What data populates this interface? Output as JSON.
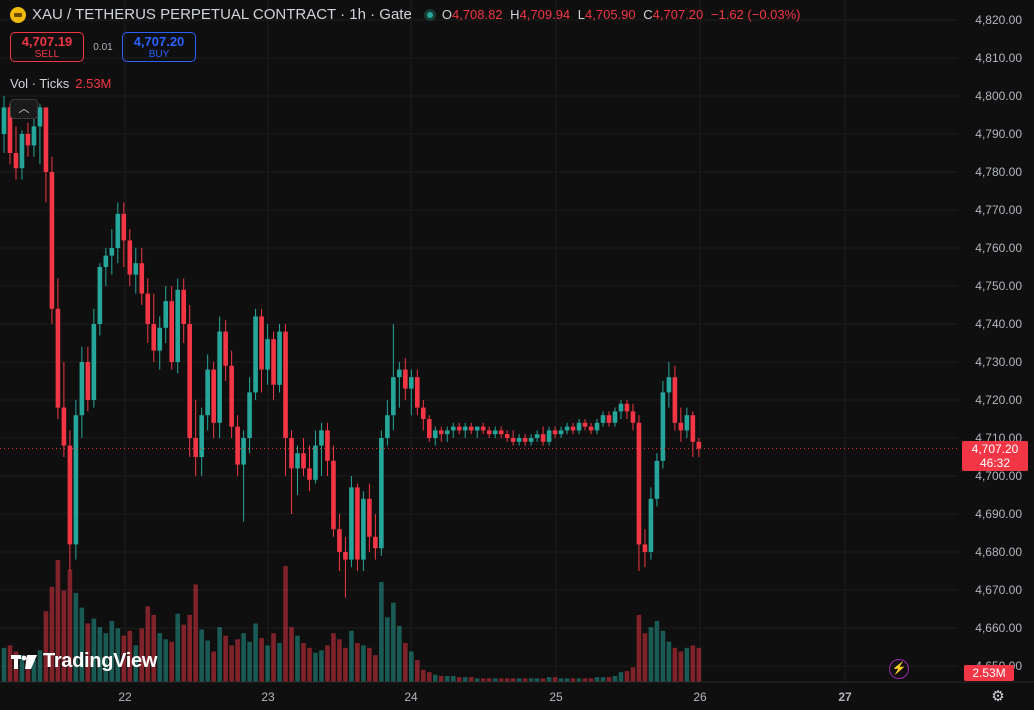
{
  "header": {
    "title": "XAU / TETHERUS PERPETUAL CONTRACT · 1h · Gate",
    "o_label": "O",
    "o": "4,708.82",
    "h_label": "H",
    "h": "4,709.94",
    "l_label": "L",
    "l": "4,705.90",
    "c_label": "C",
    "c": "4,707.20",
    "change": "−1.62 (−0.03%)"
  },
  "trade": {
    "sell_price": "4,707.19",
    "sell_label": "SELL",
    "spread": "0.01",
    "buy_price": "4,707.20",
    "buy_label": "BUY"
  },
  "volume_legend": {
    "label": "Vol · Ticks",
    "value": "2.53M"
  },
  "brand": "TradingView",
  "last_price": {
    "price": "4,707.20",
    "countdown": "46:32"
  },
  "volume_last": "2.53M",
  "colors": {
    "up": "#26a69a",
    "down": "#f23645",
    "background": "#0f0f0f",
    "buy": "#2962ff"
  },
  "icons": [
    "collapse-chevron-icon",
    "lightning-icon",
    "settings-icon",
    "tradingview-logo-icon"
  ],
  "chart_data": {
    "type": "candlestick",
    "y_ticks": [
      "4,820.00",
      "4,810.00",
      "4,800.00",
      "4,790.00",
      "4,780.00",
      "4,770.00",
      "4,760.00",
      "4,750.00",
      "4,740.00",
      "4,730.00",
      "4,720.00",
      "4,710.00",
      "4,700.00",
      "4,690.00",
      "4,680.00",
      "4,670.00",
      "4,660.00",
      "4,650.00"
    ],
    "x_ticks": [
      "22",
      "23",
      "24",
      "25",
      "26",
      "27"
    ],
    "ylim": [
      4648,
      4822
    ],
    "last_price": 4707.2,
    "volume_unit": "ticks",
    "candles": [
      {
        "o": 4790,
        "h": 4800,
        "l": 4785,
        "c": 4797,
        "v": 0.28
      },
      {
        "o": 4797,
        "h": 4798,
        "l": 4782,
        "c": 4785,
        "v": 0.3
      },
      {
        "o": 4785,
        "h": 4792,
        "l": 4778,
        "c": 4781,
        "v": 0.25
      },
      {
        "o": 4781,
        "h": 4791,
        "l": 4778,
        "c": 4790,
        "v": 0.22
      },
      {
        "o": 4790,
        "h": 4793,
        "l": 4784,
        "c": 4787,
        "v": 0.2
      },
      {
        "o": 4787,
        "h": 4795,
        "l": 4784,
        "c": 4792,
        "v": 0.18
      },
      {
        "o": 4792,
        "h": 4798,
        "l": 4782,
        "c": 4797,
        "v": 0.26
      },
      {
        "o": 4797,
        "h": 4797,
        "l": 4772,
        "c": 4780,
        "v": 0.58
      },
      {
        "o": 4780,
        "h": 4784,
        "l": 4740,
        "c": 4744,
        "v": 0.78
      },
      {
        "o": 4744,
        "h": 4752,
        "l": 4715,
        "c": 4718,
        "v": 1.0
      },
      {
        "o": 4718,
        "h": 4730,
        "l": 4705,
        "c": 4708,
        "v": 0.75
      },
      {
        "o": 4708,
        "h": 4712,
        "l": 4675,
        "c": 4682,
        "v": 0.92
      },
      {
        "o": 4682,
        "h": 4720,
        "l": 4678,
        "c": 4716,
        "v": 0.73
      },
      {
        "o": 4716,
        "h": 4734,
        "l": 4710,
        "c": 4730,
        "v": 0.61
      },
      {
        "o": 4730,
        "h": 4734,
        "l": 4717,
        "c": 4720,
        "v": 0.48
      },
      {
        "o": 4720,
        "h": 4744,
        "l": 4718,
        "c": 4740,
        "v": 0.52
      },
      {
        "o": 4740,
        "h": 4756,
        "l": 4737,
        "c": 4755,
        "v": 0.45
      },
      {
        "o": 4755,
        "h": 4760,
        "l": 4750,
        "c": 4758,
        "v": 0.4
      },
      {
        "o": 4758,
        "h": 4765,
        "l": 4753,
        "c": 4760,
        "v": 0.5
      },
      {
        "o": 4760,
        "h": 4772,
        "l": 4756,
        "c": 4769,
        "v": 0.44
      },
      {
        "o": 4769,
        "h": 4772,
        "l": 4755,
        "c": 4762,
        "v": 0.38
      },
      {
        "o": 4762,
        "h": 4765,
        "l": 4750,
        "c": 4753,
        "v": 0.42
      },
      {
        "o": 4753,
        "h": 4760,
        "l": 4748,
        "c": 4756,
        "v": 0.3
      },
      {
        "o": 4756,
        "h": 4760,
        "l": 4745,
        "c": 4748,
        "v": 0.44
      },
      {
        "o": 4748,
        "h": 4752,
        "l": 4735,
        "c": 4740,
        "v": 0.62
      },
      {
        "o": 4740,
        "h": 4748,
        "l": 4730,
        "c": 4733,
        "v": 0.55
      },
      {
        "o": 4733,
        "h": 4742,
        "l": 4728,
        "c": 4739,
        "v": 0.4
      },
      {
        "o": 4739,
        "h": 4750,
        "l": 4735,
        "c": 4746,
        "v": 0.35
      },
      {
        "o": 4746,
        "h": 4750,
        "l": 4728,
        "c": 4730,
        "v": 0.33
      },
      {
        "o": 4730,
        "h": 4752,
        "l": 4727,
        "c": 4749,
        "v": 0.56
      },
      {
        "o": 4749,
        "h": 4752,
        "l": 4735,
        "c": 4740,
        "v": 0.47
      },
      {
        "o": 4740,
        "h": 4745,
        "l": 4705,
        "c": 4710,
        "v": 0.55
      },
      {
        "o": 4710,
        "h": 4720,
        "l": 4700,
        "c": 4705,
        "v": 0.8
      },
      {
        "o": 4705,
        "h": 4718,
        "l": 4700,
        "c": 4716,
        "v": 0.43
      },
      {
        "o": 4716,
        "h": 4732,
        "l": 4712,
        "c": 4728,
        "v": 0.34
      },
      {
        "o": 4728,
        "h": 4730,
        "l": 4710,
        "c": 4714,
        "v": 0.25
      },
      {
        "o": 4714,
        "h": 4742,
        "l": 4710,
        "c": 4738,
        "v": 0.45
      },
      {
        "o": 4738,
        "h": 4741,
        "l": 4725,
        "c": 4729,
        "v": 0.38
      },
      {
        "o": 4729,
        "h": 4733,
        "l": 4710,
        "c": 4713,
        "v": 0.3
      },
      {
        "o": 4713,
        "h": 4716,
        "l": 4700,
        "c": 4703,
        "v": 0.35
      },
      {
        "o": 4703,
        "h": 4712,
        "l": 4688,
        "c": 4710,
        "v": 0.4
      },
      {
        "o": 4710,
        "h": 4726,
        "l": 4706,
        "c": 4722,
        "v": 0.33
      },
      {
        "o": 4722,
        "h": 4744,
        "l": 4720,
        "c": 4742,
        "v": 0.48
      },
      {
        "o": 4742,
        "h": 4744,
        "l": 4722,
        "c": 4728,
        "v": 0.36
      },
      {
        "o": 4728,
        "h": 4740,
        "l": 4724,
        "c": 4736,
        "v": 0.3
      },
      {
        "o": 4736,
        "h": 4738,
        "l": 4720,
        "c": 4724,
        "v": 0.4
      },
      {
        "o": 4724,
        "h": 4740,
        "l": 4722,
        "c": 4738,
        "v": 0.32
      },
      {
        "o": 4738,
        "h": 4740,
        "l": 4700,
        "c": 4710,
        "v": 0.95
      },
      {
        "o": 4710,
        "h": 4712,
        "l": 4690,
        "c": 4702,
        "v": 0.45
      },
      {
        "o": 4702,
        "h": 4708,
        "l": 4695,
        "c": 4706,
        "v": 0.38
      },
      {
        "o": 4706,
        "h": 4710,
        "l": 4700,
        "c": 4702,
        "v": 0.32
      },
      {
        "o": 4702,
        "h": 4708,
        "l": 4696,
        "c": 4699,
        "v": 0.28
      },
      {
        "o": 4699,
        "h": 4712,
        "l": 4698,
        "c": 4708,
        "v": 0.24
      },
      {
        "o": 4708,
        "h": 4714,
        "l": 4700,
        "c": 4712,
        "v": 0.26
      },
      {
        "o": 4712,
        "h": 4714,
        "l": 4700,
        "c": 4704,
        "v": 0.3
      },
      {
        "o": 4704,
        "h": 4708,
        "l": 4684,
        "c": 4686,
        "v": 0.4
      },
      {
        "o": 4686,
        "h": 4690,
        "l": 4675,
        "c": 4680,
        "v": 0.35
      },
      {
        "o": 4680,
        "h": 4684,
        "l": 4668,
        "c": 4678,
        "v": 0.28
      },
      {
        "o": 4678,
        "h": 4700,
        "l": 4676,
        "c": 4697,
        "v": 0.42
      },
      {
        "o": 4697,
        "h": 4698,
        "l": 4675,
        "c": 4678,
        "v": 0.32
      },
      {
        "o": 4678,
        "h": 4696,
        "l": 4675,
        "c": 4694,
        "v": 0.3
      },
      {
        "o": 4694,
        "h": 4698,
        "l": 4680,
        "c": 4684,
        "v": 0.28
      },
      {
        "o": 4684,
        "h": 4690,
        "l": 4678,
        "c": 4681,
        "v": 0.22
      },
      {
        "o": 4681,
        "h": 4712,
        "l": 4679,
        "c": 4710,
        "v": 0.82
      },
      {
        "o": 4710,
        "h": 4720,
        "l": 4708,
        "c": 4716,
        "v": 0.53
      },
      {
        "o": 4716,
        "h": 4740,
        "l": 4712,
        "c": 4726,
        "v": 0.65
      },
      {
        "o": 4726,
        "h": 4730,
        "l": 4718,
        "c": 4728,
        "v": 0.46
      },
      {
        "o": 4728,
        "h": 4731,
        "l": 4720,
        "c": 4723,
        "v": 0.32
      },
      {
        "o": 4723,
        "h": 4728,
        "l": 4716,
        "c": 4726,
        "v": 0.25
      },
      {
        "o": 4726,
        "h": 4728,
        "l": 4716,
        "c": 4718,
        "v": 0.18
      },
      {
        "o": 4718,
        "h": 4720,
        "l": 4712,
        "c": 4715,
        "v": 0.1
      },
      {
        "o": 4715,
        "h": 4716,
        "l": 4709,
        "c": 4710,
        "v": 0.08
      },
      {
        "o": 4710,
        "h": 4713,
        "l": 4708,
        "c": 4712,
        "v": 0.06
      },
      {
        "o": 4712,
        "h": 4713,
        "l": 4709,
        "c": 4711,
        "v": 0.05
      },
      {
        "o": 4711,
        "h": 4713,
        "l": 4709,
        "c": 4712,
        "v": 0.05
      },
      {
        "o": 4712,
        "h": 4714,
        "l": 4710,
        "c": 4713,
        "v": 0.05
      },
      {
        "o": 4713,
        "h": 4714,
        "l": 4711,
        "c": 4712,
        "v": 0.04
      },
      {
        "o": 4712,
        "h": 4714,
        "l": 4710,
        "c": 4713,
        "v": 0.04
      },
      {
        "o": 4713,
        "h": 4714,
        "l": 4711,
        "c": 4712,
        "v": 0.04
      },
      {
        "o": 4712,
        "h": 4713,
        "l": 4710,
        "c": 4713,
        "v": 0.03
      },
      {
        "o": 4713,
        "h": 4714,
        "l": 4711,
        "c": 4712,
        "v": 0.03
      },
      {
        "o": 4712,
        "h": 4713,
        "l": 4710,
        "c": 4711,
        "v": 0.03
      },
      {
        "o": 4711,
        "h": 4713,
        "l": 4710,
        "c": 4712,
        "v": 0.03
      },
      {
        "o": 4712,
        "h": 4713,
        "l": 4710,
        "c": 4711,
        "v": 0.03
      },
      {
        "o": 4711,
        "h": 4712,
        "l": 4709,
        "c": 4710,
        "v": 0.03
      },
      {
        "o": 4710,
        "h": 4712,
        "l": 4708,
        "c": 4709,
        "v": 0.03
      },
      {
        "o": 4709,
        "h": 4711,
        "l": 4708,
        "c": 4710,
        "v": 0.03
      },
      {
        "o": 4710,
        "h": 4711,
        "l": 4708,
        "c": 4709,
        "v": 0.03
      },
      {
        "o": 4709,
        "h": 4711,
        "l": 4708,
        "c": 4710,
        "v": 0.03
      },
      {
        "o": 4710,
        "h": 4712,
        "l": 4709,
        "c": 4711,
        "v": 0.03
      },
      {
        "o": 4711,
        "h": 4713,
        "l": 4708,
        "c": 4709,
        "v": 0.03
      },
      {
        "o": 4709,
        "h": 4713,
        "l": 4708,
        "c": 4712,
        "v": 0.04
      },
      {
        "o": 4712,
        "h": 4713,
        "l": 4710,
        "c": 4711,
        "v": 0.04
      },
      {
        "o": 4711,
        "h": 4713,
        "l": 4710,
        "c": 4712,
        "v": 0.03
      },
      {
        "o": 4712,
        "h": 4714,
        "l": 4711,
        "c": 4713,
        "v": 0.03
      },
      {
        "o": 4713,
        "h": 4714,
        "l": 4711,
        "c": 4712,
        "v": 0.03
      },
      {
        "o": 4712,
        "h": 4715,
        "l": 4711,
        "c": 4714,
        "v": 0.03
      },
      {
        "o": 4714,
        "h": 4715,
        "l": 4712,
        "c": 4713,
        "v": 0.03
      },
      {
        "o": 4713,
        "h": 4714,
        "l": 4711,
        "c": 4712,
        "v": 0.03
      },
      {
        "o": 4712,
        "h": 4715,
        "l": 4711,
        "c": 4714,
        "v": 0.04
      },
      {
        "o": 4714,
        "h": 4717,
        "l": 4713,
        "c": 4716,
        "v": 0.04
      },
      {
        "o": 4716,
        "h": 4717,
        "l": 4713,
        "c": 4714,
        "v": 0.04
      },
      {
        "o": 4714,
        "h": 4718,
        "l": 4713,
        "c": 4717,
        "v": 0.05
      },
      {
        "o": 4717,
        "h": 4720,
        "l": 4715,
        "c": 4719,
        "v": 0.08
      },
      {
        "o": 4719,
        "h": 4720,
        "l": 4715,
        "c": 4717,
        "v": 0.09
      },
      {
        "o": 4717,
        "h": 4719,
        "l": 4712,
        "c": 4714,
        "v": 0.12
      },
      {
        "o": 4714,
        "h": 4716,
        "l": 4675,
        "c": 4682,
        "v": 0.55
      },
      {
        "o": 4682,
        "h": 4686,
        "l": 4676,
        "c": 4680,
        "v": 0.4
      },
      {
        "o": 4680,
        "h": 4697,
        "l": 4678,
        "c": 4694,
        "v": 0.45
      },
      {
        "o": 4694,
        "h": 4706,
        "l": 4692,
        "c": 4704,
        "v": 0.5
      },
      {
        "o": 4704,
        "h": 4725,
        "l": 4702,
        "c": 4722,
        "v": 0.42
      },
      {
        "o": 4722,
        "h": 4730,
        "l": 4718,
        "c": 4726,
        "v": 0.33
      },
      {
        "o": 4726,
        "h": 4729,
        "l": 4712,
        "c": 4714,
        "v": 0.28
      },
      {
        "o": 4714,
        "h": 4718,
        "l": 4709,
        "c": 4712,
        "v": 0.25
      },
      {
        "o": 4712,
        "h": 4718,
        "l": 4710,
        "c": 4716,
        "v": 0.28
      },
      {
        "o": 4716,
        "h": 4717,
        "l": 4705,
        "c": 4709,
        "v": 0.3
      },
      {
        "o": 4709,
        "h": 4710,
        "l": 4705,
        "c": 4707.2,
        "v": 0.28
      }
    ]
  }
}
